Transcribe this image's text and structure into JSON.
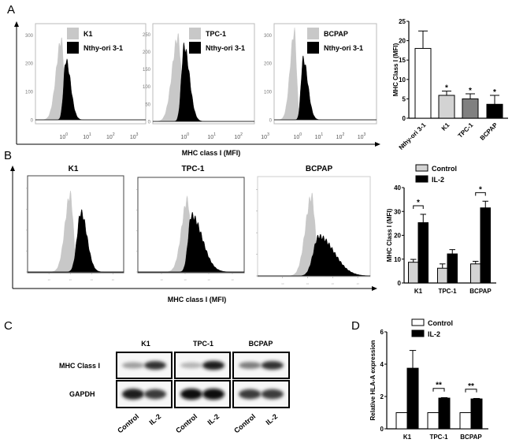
{
  "panels": {
    "a": "A",
    "b": "B",
    "c": "C",
    "d": "D"
  },
  "histogram_axis_label": "MHC class I (MFI)",
  "colors": {
    "control": "#c8c8c8",
    "treated": "#000000",
    "k1_bar": "#d3d3d3",
    "tpc1_bar": "#808080",
    "bcpap_bar": "#000000",
    "nthy_bar": "#ffffff"
  },
  "chart_data": [
    {
      "id": "A-hist-K1",
      "type": "area",
      "legend": [
        "K1",
        "Nthy-ori 3-1"
      ],
      "xscale": "log",
      "xlim": [
        -1.2,
        3.5
      ],
      "xticks": [
        0,
        1,
        2,
        3
      ],
      "xtick_base": "10",
      "ylim": [
        0,
        340
      ],
      "yticks": [
        0,
        100,
        200,
        300
      ],
      "series": [
        {
          "name": "K1",
          "peak_log10": -0.1,
          "peak_count": 280,
          "spread_left": 0.22,
          "spread_right": 0.12,
          "color": "#c8c8c8"
        },
        {
          "name": "Nthy-ori 3-1",
          "peak_log10": 0.1,
          "peak_count": 210,
          "spread_left": 0.1,
          "spread_right": 0.2,
          "color": "#000000"
        }
      ]
    },
    {
      "id": "A-hist-TPC-1",
      "type": "area",
      "legend": [
        "TPC-1",
        "Nthy-ori 3-1"
      ],
      "xscale": "log",
      "xlim": [
        -1.2,
        2.6
      ],
      "xticks": [
        0,
        1,
        2,
        3
      ],
      "xtick_base": "10",
      "ylim": [
        0,
        280
      ],
      "yticks": [
        0,
        50,
        100,
        150,
        200,
        250
      ],
      "series": [
        {
          "name": "TPC-1",
          "peak_log10": -0.26,
          "peak_count": 240,
          "spread_left": 0.22,
          "spread_right": 0.12,
          "color": "#c8c8c8"
        },
        {
          "name": "Nthy-ori 3-1",
          "peak_log10": -0.03,
          "peak_count": 215,
          "spread_left": 0.1,
          "spread_right": 0.2,
          "color": "#000000"
        }
      ]
    },
    {
      "id": "A-hist-BCPAP",
      "type": "area",
      "legend": [
        "BCPAP",
        "Nthy-ori 3-1"
      ],
      "xscale": "log",
      "xlim": [
        -1.1,
        3.7
      ],
      "xticks": [
        0,
        1,
        2,
        3
      ],
      "xtick_base": "10",
      "ylim": [
        0,
        340
      ],
      "yticks": [
        0,
        100,
        200,
        300
      ],
      "series": [
        {
          "name": "BCPAP",
          "peak_log10": -0.15,
          "peak_count": 310,
          "spread_left": 0.2,
          "spread_right": 0.1,
          "color": "#c8c8c8"
        },
        {
          "name": "Nthy-ori 3-1",
          "peak_log10": 0.26,
          "peak_count": 215,
          "spread_left": 0.1,
          "spread_right": 0.22,
          "color": "#000000"
        }
      ]
    },
    {
      "id": "A-bar",
      "type": "bar",
      "ylabel": "MHC Class I (MFI)",
      "ylim": [
        0,
        25
      ],
      "yticks": [
        0,
        5,
        10,
        15,
        20,
        25
      ],
      "categories": [
        "Nthy-ori 3-1",
        "K1",
        "TPC-1",
        "BCPAP"
      ],
      "series": [
        {
          "values": [
            18,
            5.9,
            5.0,
            3.6
          ],
          "errors": [
            4.5,
            1.1,
            1.3,
            2.3
          ],
          "colors": [
            "#ffffff",
            "#d3d3d3",
            "#808080",
            "#000000"
          ]
        }
      ],
      "significance": [
        "",
        "*",
        "*",
        "*"
      ]
    },
    {
      "id": "B-hist-K1",
      "type": "area",
      "title": "K1",
      "xscale": "log",
      "xlim": [
        -2,
        2.5
      ],
      "xticks": [
        -1,
        0,
        1,
        2
      ],
      "ylim": [
        0,
        1
      ],
      "series": [
        {
          "peak_log10": 0,
          "peak_count": 0.8,
          "spread_left": 0.25,
          "spread_right": 0.14,
          "color": "#c8c8c8"
        },
        {
          "peak_log10": 0.5,
          "peak_count": 0.62,
          "spread_left": 0.18,
          "spread_right": 0.28,
          "color": "#000000"
        }
      ]
    },
    {
      "id": "B-hist-TPC-1",
      "type": "area",
      "title": "TPC-1",
      "xscale": "log",
      "xlim": [
        -2,
        2.5
      ],
      "xticks": [
        -1,
        0,
        1,
        2
      ],
      "ylim": [
        0,
        1
      ],
      "series": [
        {
          "peak_log10": 0.1,
          "peak_count": 0.76,
          "spread_left": 0.25,
          "spread_right": 0.12,
          "color": "#c8c8c8"
        },
        {
          "peak_log10": 0.27,
          "peak_count": 0.6,
          "spread_left": 0.14,
          "spread_right": 0.45,
          "color": "#000000"
        }
      ]
    },
    {
      "id": "B-hist-BCPAP",
      "type": "area",
      "title": "BCPAP",
      "xscale": "log",
      "xlim": [
        -2,
        2.5
      ],
      "xticks": [
        -1,
        0,
        1,
        2
      ],
      "ylim": [
        0,
        1
      ],
      "series": [
        {
          "peak_log10": 0.16,
          "peak_count": 0.8,
          "spread_left": 0.25,
          "spread_right": 0.14,
          "color": "#c8c8c8"
        },
        {
          "peak_log10": 0.45,
          "peak_count": 0.4,
          "spread_left": 0.22,
          "spread_right": 0.6,
          "color": "#000000"
        }
      ]
    },
    {
      "id": "B-bar",
      "type": "bar",
      "ylabel": "MHC Class I (MFI)",
      "ylim": [
        0,
        40
      ],
      "yticks": [
        0,
        10,
        20,
        30,
        40
      ],
      "categories": [
        "K1",
        "TPC-1",
        "BCPAP"
      ],
      "legend": "top",
      "series": [
        {
          "name": "Control",
          "values": [
            8.7,
            6.2,
            8.0
          ],
          "errors": [
            1.2,
            1.8,
            1.1
          ],
          "color": "#d3d3d3"
        },
        {
          "name": "IL-2",
          "values": [
            25.3,
            12.2,
            31.5
          ],
          "errors": [
            3.5,
            1.8,
            2.8
          ],
          "color": "#000000"
        }
      ],
      "significance": [
        "*",
        "",
        "*"
      ]
    },
    {
      "id": "D-bar",
      "type": "bar",
      "ylabel": "Relative HLA-A expression",
      "ylim": [
        0,
        6
      ],
      "yticks": [
        0,
        2,
        4,
        6
      ],
      "categories": [
        "K1",
        "TPC-1",
        "BCPAP"
      ],
      "legend": "top",
      "series": [
        {
          "name": "Control",
          "values": [
            1,
            1,
            1
          ],
          "errors": [
            0,
            0,
            0
          ],
          "color": "#ffffff"
        },
        {
          "name": "IL-2",
          "values": [
            3.75,
            1.9,
            1.85
          ],
          "errors": [
            1.1,
            0.03,
            0.03
          ],
          "color": "#000000"
        }
      ],
      "significance": [
        "",
        "**",
        "**"
      ]
    }
  ],
  "blot": {
    "cell_lines": [
      "K1",
      "TPC-1",
      "BCPAP"
    ],
    "rows": [
      "MHC Class I",
      "GAPDH"
    ],
    "lanes": [
      "Control",
      "IL-2"
    ],
    "band_intensity": {
      "MHC Class I": [
        [
          0.35,
          0.85
        ],
        [
          0.25,
          0.95
        ],
        [
          0.5,
          0.85
        ]
      ],
      "GAPDH": [
        [
          0.95,
          0.8
        ],
        [
          1.0,
          1.0
        ],
        [
          0.8,
          0.8
        ]
      ]
    }
  }
}
